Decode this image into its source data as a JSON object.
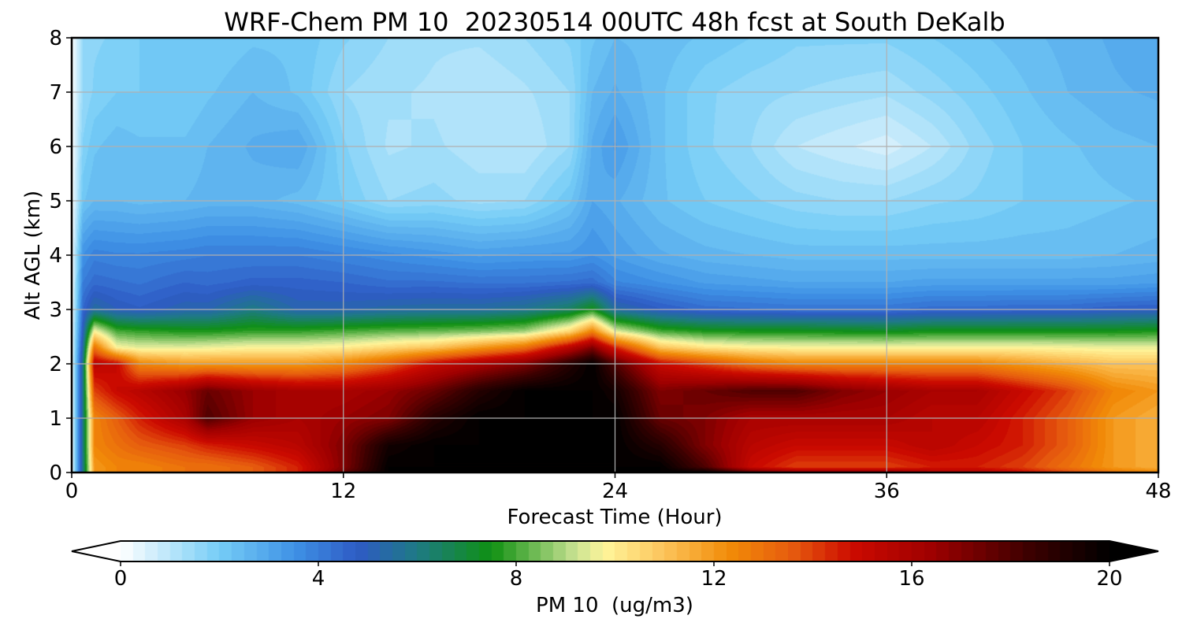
{
  "chart_data": {
    "type": "heatmap",
    "title": "WRF-Chem PM 10  20230514 00UTC 48h fcst at South DeKalb",
    "xlabel": "Forecast Time (Hour)",
    "ylabel": "Alt AGL (km)",
    "xlim": [
      0,
      48
    ],
    "ylim": [
      0,
      8
    ],
    "x_ticks": [
      0,
      12,
      24,
      36,
      48
    ],
    "y_ticks": [
      0,
      1,
      2,
      3,
      4,
      5,
      6,
      7,
      8
    ],
    "grid": true,
    "colorbar": {
      "label": "PM 10  (ug/m3)",
      "range": [
        0,
        20
      ],
      "ticks": [
        0,
        4,
        8,
        12,
        16,
        20
      ],
      "extend": "both",
      "colors": [
        {
          "v": 0,
          "c": "#ffffff"
        },
        {
          "v": 2,
          "c": "#75cdf6"
        },
        {
          "v": 3.5,
          "c": "#3f92e6"
        },
        {
          "v": 4.8,
          "c": "#2e5bc4"
        },
        {
          "v": 6,
          "c": "#1e7a84"
        },
        {
          "v": 7.5,
          "c": "#0f9012"
        },
        {
          "v": 9.2,
          "c": "#c8e292"
        },
        {
          "v": 9.8,
          "c": "#fff59a"
        },
        {
          "v": 11,
          "c": "#fcc35a"
        },
        {
          "v": 12.3,
          "c": "#f28c08"
        },
        {
          "v": 13.6,
          "c": "#e65a0e"
        },
        {
          "v": 14.8,
          "c": "#cc0a00"
        },
        {
          "v": 16.4,
          "c": "#9e0000"
        },
        {
          "v": 18.4,
          "c": "#3b0000"
        },
        {
          "v": 20,
          "c": "#000000"
        }
      ]
    },
    "x_hours": [
      0,
      0.5,
      1,
      2,
      3,
      5,
      6,
      8,
      10,
      12,
      14,
      16,
      18,
      20,
      22,
      23,
      24,
      26,
      28,
      30,
      32,
      34,
      36,
      38,
      40,
      42,
      44,
      46,
      48
    ],
    "y_km": [
      0,
      0.1,
      0.5,
      1,
      1.5,
      2,
      2.3,
      2.6,
      3,
      3.5,
      4,
      5,
      6,
      7,
      8
    ],
    "values": [
      [
        0,
        6,
        12,
        12.5,
        12.5,
        13,
        13,
        13.5,
        14.5,
        17.5,
        20,
        20,
        20,
        20,
        20,
        20,
        20,
        20,
        20,
        18,
        17,
        17,
        17,
        16,
        16,
        15,
        14,
        13,
        12.5
      ],
      [
        0,
        6,
        12,
        12.5,
        12.5,
        13,
        13,
        13.5,
        14.5,
        17,
        20,
        20,
        20,
        20,
        20,
        20,
        20,
        20,
        18,
        15,
        14,
        14,
        14,
        14.5,
        14.5,
        14,
        13,
        12,
        11.5
      ],
      [
        0,
        6,
        12.5,
        13,
        13.5,
        14,
        14.5,
        15,
        15.5,
        17,
        19.5,
        20,
        20,
        20,
        20,
        20,
        20,
        19,
        17,
        15.5,
        15,
        15,
        15,
        15.5,
        15,
        14.5,
        13.5,
        12,
        11.5
      ],
      [
        0,
        6,
        12.5,
        13.5,
        14.5,
        16,
        18,
        16.5,
        16,
        16.5,
        17,
        19,
        20,
        20,
        20,
        20,
        20,
        17.5,
        17,
        16,
        16,
        16,
        16,
        15.5,
        15.5,
        14.5,
        13.5,
        12,
        11.5
      ],
      [
        0,
        6,
        14,
        15,
        15.5,
        16.5,
        17.5,
        16.5,
        16,
        16,
        16.5,
        17.5,
        19,
        20,
        20,
        20,
        19.5,
        17,
        17.5,
        18,
        18,
        17,
        16.5,
        16,
        16,
        15,
        14,
        12.5,
        12
      ],
      [
        0,
        6,
        15.5,
        15,
        12.5,
        12,
        12,
        12,
        12,
        12.5,
        13.5,
        15,
        16,
        17,
        19,
        20,
        18,
        15,
        14,
        13,
        12.5,
        12.5,
        12.5,
        12.5,
        12.5,
        12,
        11.5,
        11,
        11
      ],
      [
        0,
        5.5,
        13,
        9.8,
        9.5,
        9.5,
        9.6,
        9.8,
        9.8,
        10,
        10.5,
        11,
        12,
        13,
        15.5,
        17,
        14.5,
        11,
        10.2,
        9.9,
        9.8,
        9.8,
        9.8,
        9.8,
        9.8,
        9.8,
        9.7,
        9.6,
        9.6
      ],
      [
        0,
        5,
        9.8,
        8,
        7.8,
        7.6,
        7.6,
        7.8,
        7.8,
        8,
        8.2,
        8.3,
        8.5,
        8.8,
        10.5,
        12.5,
        9.5,
        8,
        7.6,
        7.5,
        7.5,
        7.4,
        7.3,
        7.5,
        7.5,
        7.5,
        7.5,
        7.5,
        7.6
      ],
      [
        0,
        4.5,
        5.5,
        5,
        4.8,
        5.2,
        5.2,
        6,
        5.2,
        5.2,
        5.4,
        5.5,
        5.5,
        5.8,
        6.5,
        7.5,
        5.5,
        4.8,
        4.4,
        4.3,
        4.2,
        4.2,
        4.2,
        4.4,
        4.4,
        4.5,
        4.5,
        4.7,
        4.8
      ],
      [
        0,
        4,
        4.4,
        4.3,
        4.2,
        4.5,
        4.4,
        4.6,
        4.6,
        4.5,
        4.3,
        4.3,
        4.2,
        4.2,
        4.3,
        4.4,
        3.8,
        3.5,
        3.2,
        3.1,
        3,
        3,
        3,
        3.1,
        3.1,
        3.1,
        3.1,
        3.1,
        3.2
      ],
      [
        0,
        3.5,
        3.9,
        3.8,
        3.8,
        3.9,
        4,
        4,
        4,
        3.8,
        3.6,
        3.4,
        3.2,
        3.3,
        3.3,
        3.5,
        3.2,
        2.8,
        2.6,
        2.5,
        2.4,
        2.4,
        2.4,
        2.4,
        2.4,
        2.4,
        2.4,
        2.5,
        2.6
      ],
      [
        0,
        2.2,
        2.5,
        2.5,
        2.4,
        2.5,
        2.6,
        2.6,
        2.4,
        2,
        1.5,
        1.6,
        1.4,
        1.5,
        2.2,
        3,
        2.8,
        2.3,
        2,
        1.8,
        1.6,
        1.5,
        1.5,
        1.7,
        1.8,
        2,
        2.1,
        2.2,
        2.3
      ],
      [
        0,
        1.8,
        2.2,
        2.4,
        2.3,
        2.3,
        2.5,
        2.8,
        3,
        1.8,
        1.2,
        1.3,
        1.1,
        1,
        1.5,
        2.8,
        3.3,
        2.3,
        1.8,
        1.5,
        1,
        0.8,
        0.6,
        1,
        1.6,
        2,
        2.2,
        2.4,
        2.5
      ],
      [
        0,
        1.5,
        1.8,
        2,
        2,
        2,
        2.2,
        2.5,
        2.2,
        1.5,
        1.3,
        1.2,
        1,
        1.2,
        1.5,
        2.5,
        2.8,
        2.3,
        1.8,
        1.6,
        1.5,
        1.4,
        1.3,
        1.6,
        1.9,
        2.2,
        2.5,
        2.7,
        2.8
      ],
      [
        0,
        1.5,
        1.7,
        1.8,
        2,
        2,
        2,
        2.2,
        2.2,
        1.8,
        1.5,
        1.3,
        1.3,
        1.5,
        1.8,
        2.2,
        2.5,
        2.4,
        2.2,
        2,
        1.8,
        1.8,
        1.8,
        2,
        2.2,
        2.4,
        2.6,
        2.8,
        3
      ]
    ]
  }
}
